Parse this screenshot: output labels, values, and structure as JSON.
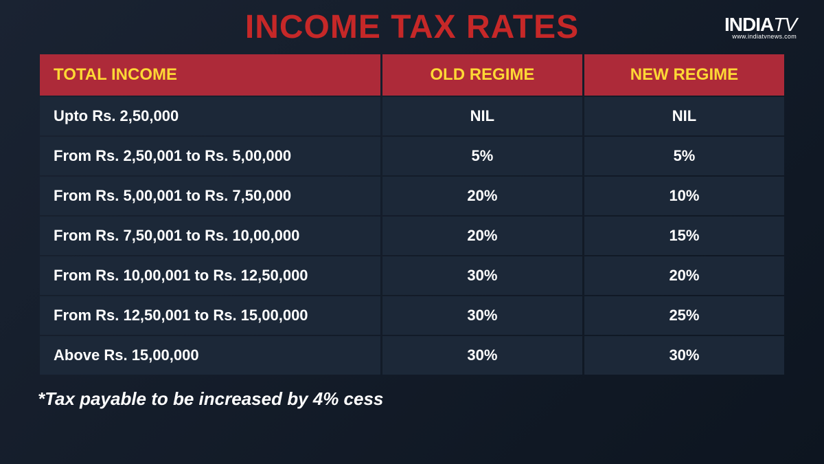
{
  "title": "INCOME TAX RATES",
  "logo": {
    "brand": "INDIA",
    "suffix": "TV",
    "url": "www.indiatvnews.com"
  },
  "table": {
    "columns": [
      "TOTAL INCOME",
      "OLD REGIME",
      "NEW REGIME"
    ],
    "column_widths": [
      "46%",
      "27%",
      "27%"
    ],
    "rows": [
      [
        "Upto Rs. 2,50,000",
        "NIL",
        "NIL"
      ],
      [
        "From Rs. 2,50,001 to Rs. 5,00,000",
        "5%",
        "5%"
      ],
      [
        "From Rs. 5,00,001 to Rs. 7,50,000",
        "20%",
        "10%"
      ],
      [
        "From Rs. 7,50,001 to Rs. 10,00,000",
        "20%",
        "15%"
      ],
      [
        "From Rs. 10,00,001 to Rs. 12,50,000",
        "30%",
        "20%"
      ],
      [
        "From Rs. 12,50,001 to Rs. 15,00,000",
        "30%",
        "25%"
      ],
      [
        "Above Rs. 15,00,000",
        "30%",
        "30%"
      ]
    ]
  },
  "footnote": "*Tax payable to be increased by 4% cess",
  "colors": {
    "title_color": "#c62828",
    "header_bg": "#ad2a39",
    "header_text": "#fdd835",
    "cell_bg": "#1c2838",
    "cell_text": "#ffffff",
    "page_bg_start": "#1a2332",
    "page_bg_end": "#0d1520",
    "footnote_color": "#ffffff"
  },
  "typography": {
    "title_fontsize": 48,
    "header_fontsize": 24,
    "cell_fontsize": 22,
    "footnote_fontsize": 26
  }
}
